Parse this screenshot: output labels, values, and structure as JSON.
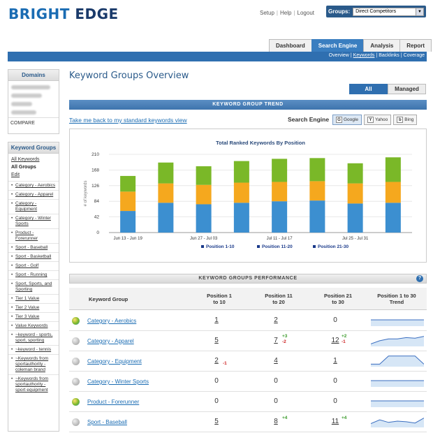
{
  "brand": {
    "part1": "BRIGHT",
    "part2": "EDGE"
  },
  "toplinks": {
    "setup": "Setup",
    "help": "Help",
    "logout": "Logout"
  },
  "groups": {
    "label": "Groups:",
    "value": "Direct Competitors"
  },
  "main_tabs": [
    "Dashboard",
    "Search Engine",
    "Analysis",
    "Report"
  ],
  "subnav": [
    "Overview",
    "Keywords",
    "Backlinks",
    "Coverage"
  ],
  "sidebar": {
    "domains_title": "Domains",
    "compare": "COMPARE",
    "kg_title": "Keyword Groups",
    "all_keywords": "All Keywords",
    "all_groups": "All Groups",
    "edit": "Edit",
    "items": [
      "Category - Aerobics",
      "Category - Apparel",
      "Category - Equipment",
      "Category - Winter Sports",
      "Product - Forerunner",
      "Sport - Baseball",
      "Sport - Basketball",
      "Sport - Golf",
      "Sport - Running",
      "Sport, Sports, and Sporting",
      "Tier 1 Value",
      "Tier 2 Value",
      "Tier 3 Value",
      "Value Keywords",
      "~keyword - sports, sport, sporting",
      "~keyword - tennis",
      "~Keywords from sportauthority - coleman brand",
      "~Keywords from sportauthority - sport equipment"
    ]
  },
  "page_title": "Keyword Groups Overview",
  "sub_tabs": [
    "All",
    "Managed"
  ],
  "trend_header": "KEYWORD GROUP TREND",
  "back_link": "Take me back to my standard keywords view",
  "search_engine": {
    "label": "Search Engine",
    "buttons": [
      "Google",
      "Yahoo",
      "Bing"
    ]
  },
  "chart_data": {
    "type": "bar",
    "stacked": true,
    "title": "Total Ranked Keywords By Position",
    "ylabel": "# of keywords",
    "ylim": [
      0,
      210
    ],
    "yticks": [
      0,
      42,
      84,
      126,
      168,
      210
    ],
    "categories": [
      "Jun 13 - Jun 19",
      "",
      "Jun 27 - Jul 03",
      "",
      "Jul 11 - Jul 17",
      "",
      "Jul 25 - Jul 31",
      ""
    ],
    "series": [
      {
        "name": "Position 1-10",
        "color": "#3c8fd0",
        "values": [
          58,
          80,
          76,
          80,
          84,
          86,
          78,
          80
        ]
      },
      {
        "name": "Position 11-20",
        "color": "#f5a81e",
        "values": [
          52,
          52,
          52,
          54,
          52,
          52,
          54,
          56
        ]
      },
      {
        "name": "Position 21-30",
        "color": "#7ab828",
        "values": [
          42,
          56,
          50,
          58,
          62,
          62,
          54,
          66
        ]
      }
    ],
    "legend_position": "bottom"
  },
  "perf_header": "KEYWORD GROUPS PERFORMANCE",
  "table": {
    "headers": [
      "Keyword Group",
      "Position 1 to 10",
      "Position 11 to 20",
      "Position 21 to 30",
      "Position 1 to 30 Trend"
    ],
    "rows": [
      {
        "icon": "green",
        "name": "Category - Aerobics",
        "p1": "1",
        "p2": "2",
        "p3": "0",
        "p1d": "",
        "p2d": "",
        "p3d": "",
        "p2d2": "",
        "p3d2": "",
        "trend": [
          0.5,
          0.5,
          0.5,
          0.5,
          0.5,
          0.5,
          0.5
        ]
      },
      {
        "icon": "gray",
        "name": "Category - Apparel",
        "p1": "5",
        "p2": "7",
        "p3": "12",
        "p1d": "",
        "p2d": "+3",
        "p2d2": "-2",
        "p3d": "+2",
        "p3d2": "-1",
        "trend": [
          0.2,
          0.45,
          0.6,
          0.6,
          0.7,
          0.65,
          0.8
        ]
      },
      {
        "icon": "gray",
        "name": "Category - Equipment",
        "p1": "2",
        "p2": "4",
        "p3": "1",
        "p1d": "-1",
        "p2d": "",
        "p3d": "",
        "p2d2": "",
        "p3d2": "",
        "trend": [
          0.2,
          0.2,
          0.85,
          0.85,
          0.85,
          0.85,
          0.2
        ]
      },
      {
        "icon": "gray",
        "name": "Category - Winter Sports",
        "p1": "0",
        "p2": "0",
        "p3": "0",
        "p1d": "",
        "p2d": "",
        "p3d": "",
        "p2d2": "",
        "p3d2": "",
        "trend": [
          0.5,
          0.5,
          0.5,
          0.5,
          0.5,
          0.5,
          0.5
        ]
      },
      {
        "icon": "green",
        "name": "Product - Forerunner",
        "p1": "0",
        "p2": "0",
        "p3": "0",
        "p1d": "",
        "p2d": "",
        "p3d": "",
        "p2d2": "",
        "p3d2": "",
        "trend": [
          0.5,
          0.5,
          0.5,
          0.5,
          0.5,
          0.5,
          0.5
        ]
      },
      {
        "icon": "gray",
        "name": "Sport - Baseball",
        "p1": "5",
        "p2": "8",
        "p3": "11",
        "p1d": "",
        "p2d": "+4",
        "p3d": "+4",
        "p2d2": "",
        "p3d2": "",
        "trend": [
          0.3,
          0.6,
          0.4,
          0.5,
          0.45,
          0.35,
          0.75
        ]
      }
    ]
  }
}
